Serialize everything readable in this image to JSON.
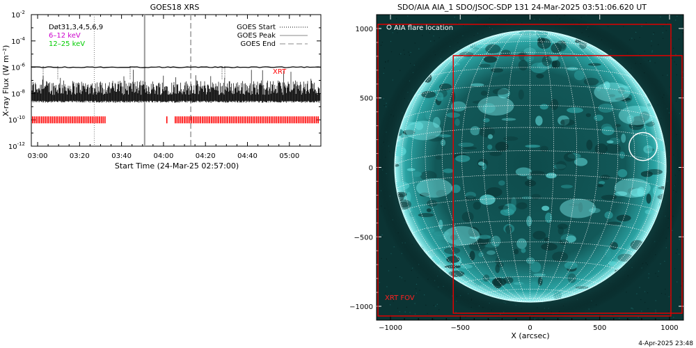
{
  "chart_data": [
    {
      "type": "line",
      "title": "GOES18 XRS",
      "xlabel": "Start Time (24-Mar-25 02:57:00)",
      "ylabel": "X-ray Flux (W m⁻²)",
      "yscale": "log",
      "ylim": [
        1e-12,
        0.01
      ],
      "x_range": [
        "02:57",
        "05:15"
      ],
      "x_ticks": [
        "03:00",
        "03:20",
        "03:40",
        "04:00",
        "04:20",
        "04:40",
        "05:00"
      ],
      "y_ticks": [
        {
          "value": 0.01,
          "base": "10",
          "exp": "-2"
        },
        {
          "value": 0.0001,
          "base": "10",
          "exp": "-4"
        },
        {
          "value": 1e-06,
          "base": "10",
          "exp": "-6"
        },
        {
          "value": 1e-08,
          "base": "10",
          "exp": "-8"
        },
        {
          "value": 1e-10,
          "base": "10",
          "exp": "-10"
        },
        {
          "value": 1e-12,
          "base": "10",
          "exp": "-12"
        }
      ],
      "legend_left": [
        {
          "text": "Døt31,3,4,5,6,9",
          "color": "#000000"
        },
        {
          "text": "6–12 keV",
          "color": "#cc00cc"
        },
        {
          "text": "12–25 keV",
          "color": "#00cc00"
        }
      ],
      "legend_right": [
        {
          "text": "GOES Start",
          "style": "dotted"
        },
        {
          "text": "GOES Peak",
          "style": "solid"
        },
        {
          "text": "GOES End",
          "style": "dashed"
        }
      ],
      "series": [
        {
          "name": "6–12 keV",
          "level": 1e-06
        },
        {
          "name": "12–25 keV",
          "level_min": 2e-09,
          "level_max": 1e-07
        }
      ],
      "event_lines": {
        "start": "03:27",
        "peak": "03:51",
        "end": "04:13"
      },
      "xrt_label": "XRT",
      "xrt_flux_level": 1e-10,
      "xrt_segments": [
        [
          "02:57",
          "03:32"
        ],
        [
          "04:01",
          "04:02"
        ],
        [
          "04:05",
          "05:14"
        ]
      ]
    },
    {
      "type": "image",
      "title": "SDO/AIA AIA_1 SDO/JSOC-SDP 131 24-Mar-2025 03:51:06.620 UT",
      "xlabel": "X (arcsec)",
      "xlim": [
        -1100,
        1100
      ],
      "ylim": [
        -1100,
        1100
      ],
      "x_ticks": [
        "−1000",
        "−500",
        "0",
        "500",
        "1000"
      ],
      "y_ticks": [
        "1000",
        "500",
        "0",
        "−500",
        "−1000"
      ],
      "legend": "AIA flare location",
      "disk_radius_arcsec": 980,
      "flare_location": {
        "x": 810,
        "y": 150,
        "r": 100
      },
      "fov_boxes": [
        {
          "label": "XRT FOV",
          "x0": -1090,
          "x1": 1010,
          "y0": -1070,
          "y0_note": "",
          "y1": 1030
        },
        {
          "label": "",
          "x0": -550,
          "x1": 1090,
          "y0": -1050,
          "y1": 805
        }
      ],
      "fov_label": "XRT FOV",
      "footer_date": "4-Apr-2025 23:48"
    }
  ],
  "colors": {
    "aia_base": "#0a3b3b",
    "aia_bright": "#6fe9e9",
    "fov": "#e00000",
    "xrt": "#ff0000"
  }
}
